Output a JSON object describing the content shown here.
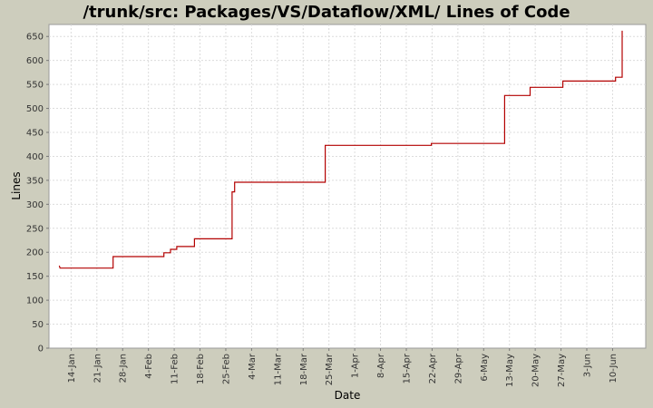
{
  "chart_data": {
    "type": "line",
    "title": "/trunk/src: Packages/VS/Dataflow/XML/ Lines of Code",
    "xlabel": "Date",
    "ylabel": "Lines",
    "ylim": [
      0,
      675
    ],
    "xlim_day": [
      0,
      162
    ],
    "grid": true,
    "step": true,
    "line_color": "#b30000",
    "plot_background": "#ffffff",
    "page_background": "#cdcdbd",
    "y_ticks": [
      0,
      50,
      100,
      150,
      200,
      250,
      300,
      350,
      400,
      450,
      500,
      550,
      600,
      650
    ],
    "x_ticks": [
      {
        "label": "14-Jan",
        "day": 6
      },
      {
        "label": "21-Jan",
        "day": 13
      },
      {
        "label": "28-Jan",
        "day": 20
      },
      {
        "label": "4-Feb",
        "day": 27
      },
      {
        "label": "11-Feb",
        "day": 34
      },
      {
        "label": "18-Feb",
        "day": 41
      },
      {
        "label": "25-Feb",
        "day": 48
      },
      {
        "label": "4-Mar",
        "day": 55
      },
      {
        "label": "11-Mar",
        "day": 62
      },
      {
        "label": "18-Mar",
        "day": 69
      },
      {
        "label": "25-Mar",
        "day": 76
      },
      {
        "label": "1-Apr",
        "day": 83
      },
      {
        "label": "8-Apr",
        "day": 90
      },
      {
        "label": "15-Apr",
        "day": 97
      },
      {
        "label": "22-Apr",
        "day": 104
      },
      {
        "label": "29-Apr",
        "day": 111
      },
      {
        "label": "6-May",
        "day": 118
      },
      {
        "label": "13-May",
        "day": 125
      },
      {
        "label": "20-May",
        "day": 132
      },
      {
        "label": "27-May",
        "day": 139
      },
      {
        "label": "3-Jun",
        "day": 146
      },
      {
        "label": "10-Jun",
        "day": 153
      }
    ],
    "series": [
      {
        "points": [
          {
            "day": 2.8,
            "y": 172
          },
          {
            "day": 3.0,
            "y": 167
          },
          {
            "day": 17.4,
            "y": 167
          },
          {
            "day": 17.4,
            "y": 191
          },
          {
            "day": 31.2,
            "y": 191
          },
          {
            "day": 31.2,
            "y": 199
          },
          {
            "day": 33.0,
            "y": 199
          },
          {
            "day": 33.0,
            "y": 206
          },
          {
            "day": 34.7,
            "y": 206
          },
          {
            "day": 34.7,
            "y": 212
          },
          {
            "day": 39.5,
            "y": 212
          },
          {
            "day": 39.5,
            "y": 228
          },
          {
            "day": 49.7,
            "y": 228
          },
          {
            "day": 49.7,
            "y": 326
          },
          {
            "day": 50.4,
            "y": 326
          },
          {
            "day": 50.4,
            "y": 346
          },
          {
            "day": 75.0,
            "y": 346
          },
          {
            "day": 75.0,
            "y": 423
          },
          {
            "day": 103.8,
            "y": 423
          },
          {
            "day": 103.8,
            "y": 427
          },
          {
            "day": 123.7,
            "y": 427
          },
          {
            "day": 123.7,
            "y": 527
          },
          {
            "day": 130.6,
            "y": 527
          },
          {
            "day": 130.6,
            "y": 544
          },
          {
            "day": 139.5,
            "y": 544
          },
          {
            "day": 139.5,
            "y": 557
          },
          {
            "day": 153.8,
            "y": 557
          },
          {
            "day": 153.8,
            "y": 565
          },
          {
            "day": 155.6,
            "y": 565
          },
          {
            "day": 155.6,
            "y": 662
          }
        ]
      }
    ]
  }
}
